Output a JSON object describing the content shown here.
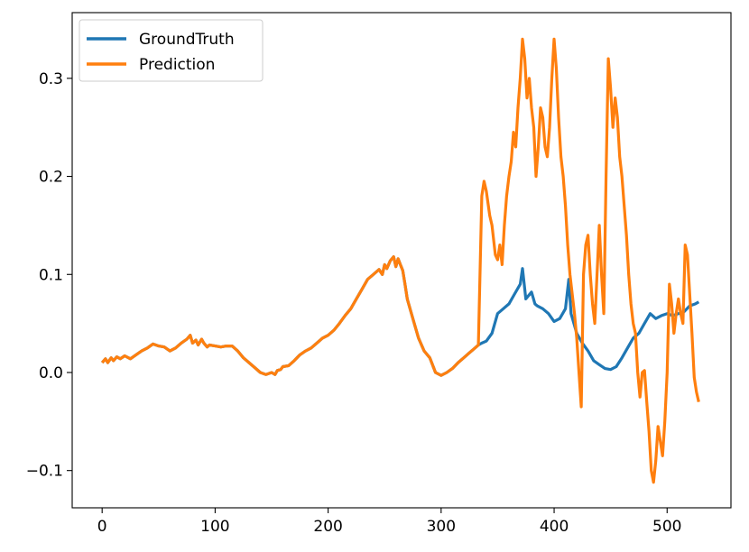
{
  "chart_data": {
    "type": "line",
    "title": "",
    "xlabel": "",
    "ylabel": "",
    "xlim": [
      -26.5,
      556.5
    ],
    "ylim": [
      -0.138,
      0.367
    ],
    "grid": false,
    "legend_position": "top-left",
    "x_ticks": [
      {
        "value": 0,
        "label": "0"
      },
      {
        "value": 100,
        "label": "100"
      },
      {
        "value": 200,
        "label": "200"
      },
      {
        "value": 300,
        "label": "300"
      },
      {
        "value": 400,
        "label": "400"
      },
      {
        "value": 500,
        "label": "500"
      }
    ],
    "y_ticks": [
      {
        "value": -0.1,
        "label": "−0.1"
      },
      {
        "value": 0.0,
        "label": "0.0"
      },
      {
        "value": 0.1,
        "label": "0.1"
      },
      {
        "value": 0.2,
        "label": "0.2"
      },
      {
        "value": 0.3,
        "label": "0.3"
      }
    ],
    "shared_prefix": {
      "x": [
        0,
        3,
        5,
        8,
        10,
        13,
        16,
        20,
        25,
        30,
        35,
        40,
        45,
        50,
        55,
        60,
        65,
        70,
        75,
        78,
        80,
        83,
        85,
        88,
        90,
        93,
        95,
        100,
        105,
        110,
        115,
        120,
        125,
        130,
        135,
        140,
        145,
        150,
        153,
        155,
        158,
        160,
        165,
        170,
        175,
        180,
        185,
        190,
        195,
        200,
        205,
        210,
        215,
        220,
        225,
        230,
        235,
        240,
        245,
        248,
        250,
        252,
        255,
        258,
        260,
        262,
        264,
        266,
        268,
        270,
        275,
        280,
        285,
        290,
        295,
        300,
        305,
        310,
        315,
        320,
        325,
        330,
        333
      ],
      "y": [
        0.01,
        0.014,
        0.01,
        0.015,
        0.012,
        0.016,
        0.014,
        0.017,
        0.014,
        0.018,
        0.022,
        0.025,
        0.029,
        0.027,
        0.026,
        0.022,
        0.025,
        0.03,
        0.034,
        0.038,
        0.03,
        0.033,
        0.028,
        0.034,
        0.03,
        0.026,
        0.028,
        0.027,
        0.026,
        0.027,
        0.027,
        0.022,
        0.015,
        0.01,
        0.005,
        0.0,
        -0.002,
        0.0,
        -0.002,
        0.002,
        0.003,
        0.006,
        0.007,
        0.012,
        0.018,
        0.022,
        0.025,
        0.03,
        0.035,
        0.038,
        0.043,
        0.05,
        0.058,
        0.065,
        0.075,
        0.085,
        0.095,
        0.1,
        0.105,
        0.1,
        0.11,
        0.106,
        0.114,
        0.118,
        0.108,
        0.116,
        0.11,
        0.104,
        0.09,
        0.075,
        0.055,
        0.035,
        0.022,
        0.015,
        0.0,
        -0.003,
        0.0,
        0.004,
        0.01,
        0.015,
        0.02,
        0.025,
        0.028
      ]
    },
    "series": [
      {
        "name": "GroundTruth",
        "color": "#1f77b4",
        "x": [
          336,
          340,
          345,
          350,
          355,
          360,
          365,
          370,
          372,
          375,
          380,
          383,
          385,
          390,
          395,
          400,
          405,
          410,
          413,
          415,
          420,
          425,
          430,
          435,
          440,
          445,
          450,
          455,
          460,
          465,
          470,
          475,
          480,
          485,
          490,
          495,
          500,
          505,
          510,
          515,
          520,
          525,
          528
        ],
        "y": [
          0.03,
          0.032,
          0.04,
          0.06,
          0.065,
          0.07,
          0.08,
          0.09,
          0.106,
          0.075,
          0.082,
          0.07,
          0.068,
          0.065,
          0.06,
          0.052,
          0.055,
          0.065,
          0.095,
          0.06,
          0.04,
          0.03,
          0.022,
          0.012,
          0.008,
          0.004,
          0.003,
          0.006,
          0.015,
          0.025,
          0.035,
          0.04,
          0.05,
          0.06,
          0.055,
          0.058,
          0.06,
          0.058,
          0.06,
          0.062,
          0.068,
          0.07,
          0.072
        ]
      },
      {
        "name": "Prediction",
        "color": "#ff7f0e",
        "x": [
          336,
          338,
          340,
          343,
          345,
          348,
          350,
          352,
          354,
          356,
          358,
          360,
          362,
          364,
          366,
          368,
          370,
          372,
          374,
          376,
          378,
          380,
          382,
          384,
          386,
          388,
          390,
          392,
          394,
          396,
          398,
          400,
          402,
          404,
          406,
          408,
          410,
          412,
          414,
          416,
          418,
          420,
          422,
          424,
          426,
          428,
          430,
          432,
          434,
          436,
          438,
          440,
          442,
          444,
          446,
          448,
          450,
          452,
          454,
          456,
          458,
          460,
          462,
          464,
          466,
          468,
          470,
          472,
          474,
          476,
          478,
          480,
          482,
          484,
          486,
          488,
          490,
          492,
          494,
          496,
          498,
          500,
          502,
          504,
          506,
          508,
          510,
          512,
          514,
          516,
          518,
          520,
          522,
          524,
          526,
          528
        ],
        "y": [
          0.18,
          0.195,
          0.185,
          0.16,
          0.15,
          0.12,
          0.115,
          0.13,
          0.11,
          0.15,
          0.18,
          0.2,
          0.215,
          0.245,
          0.23,
          0.27,
          0.3,
          0.34,
          0.32,
          0.28,
          0.3,
          0.27,
          0.25,
          0.2,
          0.23,
          0.27,
          0.26,
          0.23,
          0.22,
          0.25,
          0.3,
          0.34,
          0.31,
          0.26,
          0.22,
          0.2,
          0.17,
          0.13,
          0.1,
          0.08,
          0.06,
          0.035,
          0.0,
          -0.035,
          0.1,
          0.13,
          0.14,
          0.1,
          0.07,
          0.05,
          0.1,
          0.15,
          0.1,
          0.06,
          0.2,
          0.32,
          0.29,
          0.25,
          0.28,
          0.26,
          0.22,
          0.2,
          0.17,
          0.14,
          0.1,
          0.07,
          0.05,
          0.04,
          0.0,
          -0.025,
          0.0,
          0.002,
          -0.03,
          -0.06,
          -0.1,
          -0.112,
          -0.09,
          -0.055,
          -0.07,
          -0.085,
          -0.05,
          0.0,
          0.09,
          0.07,
          0.04,
          0.06,
          0.075,
          0.06,
          0.05,
          0.13,
          0.12,
          0.08,
          0.04,
          -0.005,
          -0.02,
          -0.03
        ]
      }
    ]
  }
}
